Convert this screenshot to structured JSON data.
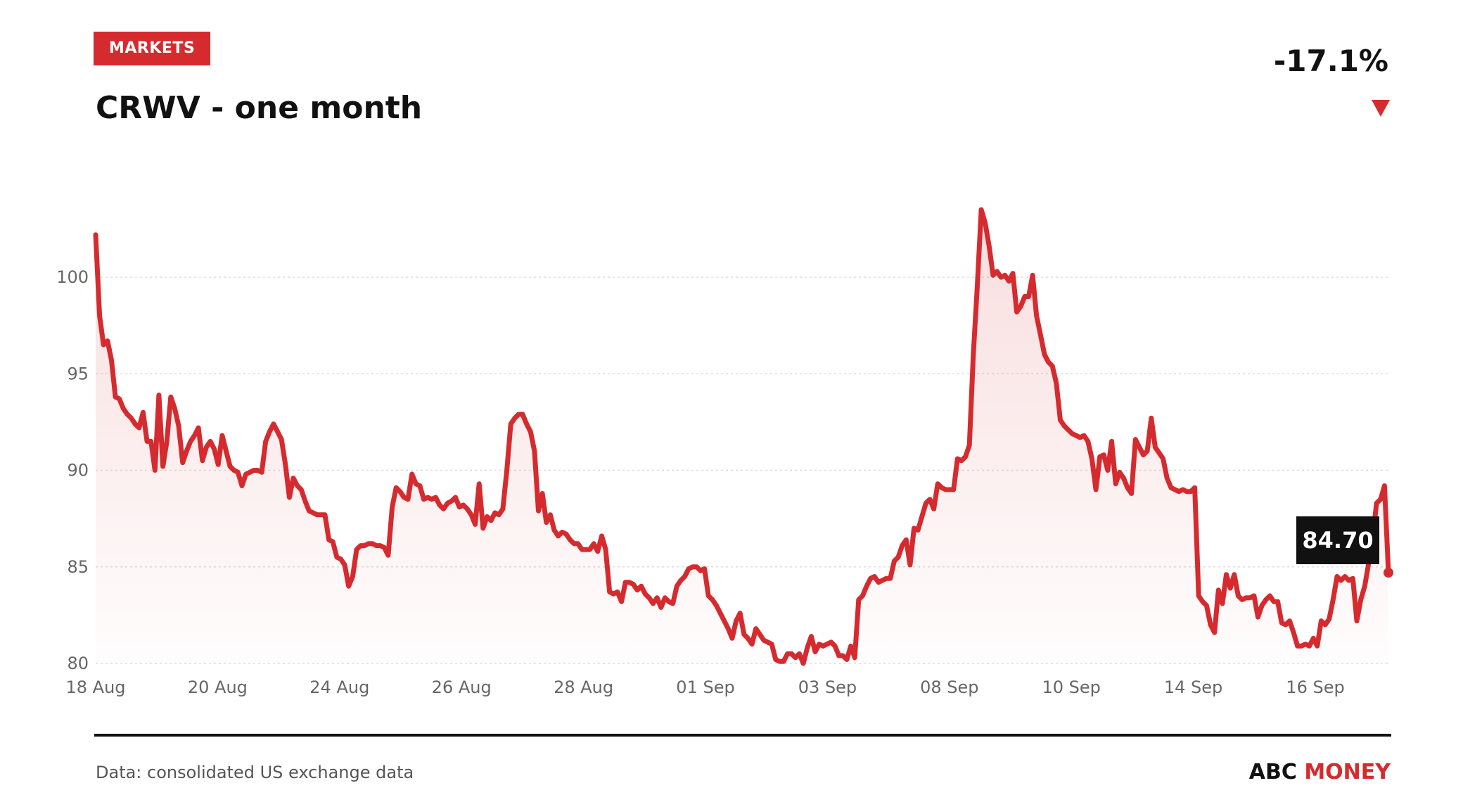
{
  "header": {
    "badge": "MARKETS",
    "title": "CRWV - one month",
    "change": "-17.1%",
    "direction": "down"
  },
  "footer": {
    "source": "Data: consolidated US exchange data",
    "brand_left": "ABC",
    "brand_right": "MONEY"
  },
  "colors": {
    "line": "#d52b2f",
    "label_bg": "#111111"
  },
  "chart_data": {
    "type": "area",
    "ylim": [
      80,
      103.5
    ],
    "yticks": [
      80,
      85,
      90,
      95,
      100
    ],
    "grid": true,
    "xticks": [
      "18 Aug",
      "20 Aug",
      "24 Aug",
      "26 Aug",
      "28 Aug",
      "01 Sep",
      "03 Sep",
      "08 Sep",
      "10 Sep",
      "14 Sep",
      "16 Sep"
    ],
    "last_value": "84.70",
    "series": [
      {
        "values": [
          102.2,
          98.0,
          96.5,
          96.7,
          95.7,
          93.8,
          93.7,
          93.2,
          92.9,
          92.7,
          92.4,
          92.2,
          93.0,
          91.5,
          91.5,
          90.0,
          93.9,
          90.2,
          91.5,
          93.8,
          93.2,
          92.3,
          90.4,
          91.0,
          91.5,
          91.8,
          92.2,
          90.5,
          91.2,
          91.5,
          91.1,
          90.3,
          91.8,
          91.0,
          90.2,
          90.0,
          89.9,
          89.2,
          89.8,
          89.9,
          90.0,
          90.0,
          89.9,
          91.5,
          92.0,
          92.4,
          92.0,
          91.6,
          90.3,
          88.6,
          89.6,
          89.2,
          89.0,
          88.4,
          87.9,
          87.8,
          87.7,
          87.7,
          87.7,
          86.4,
          86.3,
          85.5,
          85.4,
          85.1,
          84.0,
          84.5,
          85.9,
          86.1,
          86.1,
          86.2,
          86.2,
          86.1,
          86.1,
          86.0,
          85.6,
          88.1,
          89.1,
          88.9,
          88.6,
          88.5,
          89.8,
          89.3,
          89.2,
          88.5,
          88.6,
          88.5,
          88.6,
          88.2,
          88.0,
          88.3,
          88.4,
          88.6,
          88.1,
          88.2,
          88.0,
          87.7,
          87.2,
          89.3,
          87.0,
          87.6,
          87.4,
          87.8,
          87.7,
          88.0,
          90.0,
          92.4,
          92.7,
          92.9,
          92.9,
          92.4,
          92.0,
          91.0,
          87.9,
          88.8,
          87.3,
          87.7,
          86.9,
          86.6,
          86.8,
          86.7,
          86.4,
          86.2,
          86.2,
          85.9,
          85.9,
          85.9,
          86.2,
          85.8,
          86.6,
          85.9,
          83.7,
          83.6,
          83.7,
          83.2,
          84.2,
          84.2,
          84.1,
          83.8,
          84.0,
          83.6,
          83.4,
          83.1,
          83.4,
          82.9,
          83.4,
          83.2,
          83.1,
          84.0,
          84.3,
          84.5,
          84.9,
          85.0,
          85.0,
          84.8,
          84.9,
          83.5,
          83.3,
          83.0,
          82.6,
          82.2,
          81.8,
          81.3,
          82.2,
          82.6,
          81.5,
          81.3,
          81.0,
          81.8,
          81.5,
          81.2,
          81.1,
          81.0,
          80.2,
          80.1,
          80.1,
          80.5,
          80.5,
          80.3,
          80.5,
          80.0,
          80.8,
          81.4,
          80.6,
          81.0,
          80.9,
          81.0,
          81.1,
          80.9,
          80.4,
          80.4,
          80.2,
          80.9,
          80.3,
          83.3,
          83.5,
          84.0,
          84.4,
          84.5,
          84.2,
          84.3,
          84.4,
          84.4,
          85.3,
          85.5,
          86.1,
          86.4,
          85.1,
          87.0,
          86.9,
          87.6,
          88.3,
          88.5,
          88.0,
          89.3,
          89.1,
          89.0,
          89.0,
          89.0,
          90.6,
          90.5,
          90.7,
          91.3,
          96.0,
          99.5,
          103.5,
          102.8,
          101.6,
          100.1,
          100.3,
          100.0,
          100.1,
          99.8,
          100.2,
          98.2,
          98.5,
          99.0,
          99.0,
          100.1,
          98.0,
          97.0,
          96.0,
          95.6,
          95.4,
          94.5,
          92.6,
          92.3,
          92.1,
          91.9,
          91.8,
          91.7,
          91.8,
          91.5,
          90.6,
          89.0,
          90.7,
          90.8,
          90.0,
          91.5,
          89.3,
          89.9,
          89.6,
          89.1,
          88.8,
          91.6,
          91.2,
          90.8,
          91.0,
          92.7,
          91.2,
          90.9,
          90.6,
          89.6,
          89.1,
          89.0,
          88.9,
          89.0,
          88.9,
          88.9,
          89.1,
          83.5,
          83.2,
          83.0,
          82.0,
          81.6,
          83.8,
          83.1,
          84.6,
          83.9,
          84.6,
          83.5,
          83.3,
          83.4,
          83.4,
          83.5,
          82.4,
          83.0,
          83.3,
          83.5,
          83.2,
          83.2,
          82.1,
          82.0,
          82.2,
          81.6,
          80.9,
          80.9,
          81.0,
          80.9,
          81.3,
          80.9,
          82.2,
          82.0,
          82.3,
          83.3,
          84.5,
          84.3,
          84.5,
          84.3,
          84.4,
          82.2,
          83.3,
          84.0,
          85.2,
          86.5,
          88.3,
          88.5,
          89.2,
          84.7
        ]
      }
    ]
  }
}
